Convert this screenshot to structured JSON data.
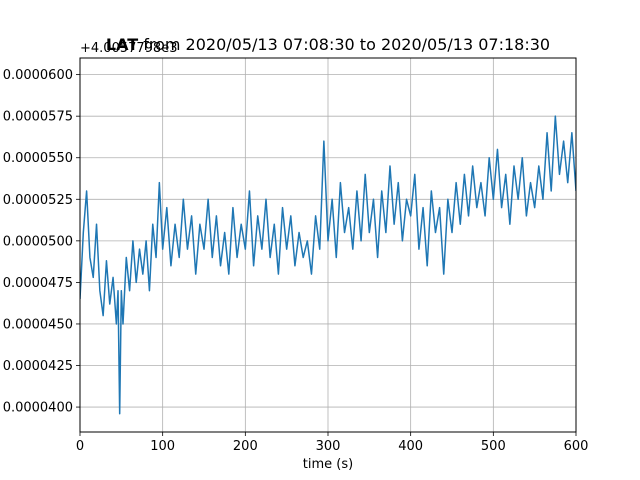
{
  "chart_data": {
    "type": "line",
    "title_bold": "LAT",
    "title_rest": " from 2020/05/13 07:08:30 to 2020/05/13 07:18:30",
    "xlabel": "time (s)",
    "ylabel": "",
    "offset_text": "+4.0057798e3",
    "xlim": [
      0,
      600
    ],
    "ylim": [
      3.85e-05,
      6.1e-05
    ],
    "x_ticks": [
      0,
      100,
      200,
      300,
      400,
      500,
      600
    ],
    "x_tick_labels": [
      "0",
      "100",
      "200",
      "300",
      "400",
      "500",
      "600"
    ],
    "y_ticks": [
      4e-05,
      4.25e-05,
      4.5e-05,
      4.75e-05,
      5e-05,
      5.25e-05,
      5.5e-05,
      5.75e-05,
      6e-05
    ],
    "y_tick_labels": [
      "0.0000400",
      "0.0000425",
      "0.0000450",
      "0.0000475",
      "0.0000500",
      "0.0000525",
      "0.0000550",
      "0.0000575",
      "0.0000600"
    ],
    "grid": true,
    "series": [
      {
        "color": "#1f77b4",
        "x": [
          0,
          4,
          8,
          12,
          16,
          20,
          24,
          28,
          32,
          36,
          40,
          44,
          46,
          48,
          50,
          52,
          56,
          60,
          64,
          68,
          72,
          76,
          80,
          84,
          88,
          92,
          96,
          100,
          105,
          110,
          115,
          120,
          125,
          130,
          135,
          140,
          145,
          150,
          155,
          160,
          165,
          170,
          175,
          180,
          185,
          190,
          195,
          200,
          205,
          210,
          215,
          220,
          225,
          230,
          235,
          240,
          245,
          250,
          255,
          260,
          265,
          270,
          275,
          280,
          285,
          290,
          295,
          300,
          305,
          310,
          315,
          320,
          325,
          330,
          335,
          340,
          345,
          350,
          355,
          360,
          365,
          370,
          375,
          380,
          385,
          390,
          395,
          400,
          405,
          410,
          415,
          420,
          425,
          430,
          435,
          440,
          445,
          450,
          455,
          460,
          465,
          470,
          475,
          480,
          485,
          490,
          495,
          500,
          505,
          510,
          515,
          520,
          525,
          530,
          535,
          540,
          545,
          550,
          555,
          560,
          565,
          570,
          575,
          580,
          585,
          590,
          595,
          600
        ],
        "y": [
          4.65e-05,
          5.05e-05,
          5.3e-05,
          4.9e-05,
          4.78e-05,
          5.1e-05,
          4.7e-05,
          4.55e-05,
          4.88e-05,
          4.62e-05,
          4.78e-05,
          4.5e-05,
          4.7e-05,
          3.96e-05,
          4.7e-05,
          4.5e-05,
          4.9e-05,
          4.7e-05,
          5e-05,
          4.75e-05,
          4.95e-05,
          4.8e-05,
          5e-05,
          4.7e-05,
          5.1e-05,
          4.9e-05,
          5.35e-05,
          4.95e-05,
          5.2e-05,
          4.85e-05,
          5.1e-05,
          4.9e-05,
          5.25e-05,
          4.95e-05,
          5.15e-05,
          4.8e-05,
          5.1e-05,
          4.95e-05,
          5.25e-05,
          4.9e-05,
          5.15e-05,
          4.85e-05,
          5.05e-05,
          4.8e-05,
          5.2e-05,
          4.9e-05,
          5.1e-05,
          4.95e-05,
          5.3e-05,
          4.85e-05,
          5.15e-05,
          4.95e-05,
          5.25e-05,
          4.9e-05,
          5.1e-05,
          4.8e-05,
          5.2e-05,
          4.95e-05,
          5.15e-05,
          4.85e-05,
          5.05e-05,
          4.9e-05,
          5e-05,
          4.8e-05,
          5.15e-05,
          4.95e-05,
          5.6e-05,
          5e-05,
          5.25e-05,
          4.9e-05,
          5.35e-05,
          5.05e-05,
          5.2e-05,
          4.95e-05,
          5.3e-05,
          5e-05,
          5.4e-05,
          5.05e-05,
          5.25e-05,
          4.9e-05,
          5.3e-05,
          5.05e-05,
          5.45e-05,
          5.1e-05,
          5.35e-05,
          5e-05,
          5.25e-05,
          5.15e-05,
          5.4e-05,
          4.95e-05,
          5.2e-05,
          4.85e-05,
          5.3e-05,
          5.05e-05,
          5.2e-05,
          4.8e-05,
          5.25e-05,
          5.05e-05,
          5.35e-05,
          5.1e-05,
          5.4e-05,
          5.15e-05,
          5.45e-05,
          5.2e-05,
          5.35e-05,
          5.15e-05,
          5.5e-05,
          5.25e-05,
          5.55e-05,
          5.2e-05,
          5.4e-05,
          5.1e-05,
          5.45e-05,
          5.25e-05,
          5.5e-05,
          5.15e-05,
          5.35e-05,
          5.2e-05,
          5.45e-05,
          5.25e-05,
          5.65e-05,
          5.3e-05,
          5.75e-05,
          5.4e-05,
          5.6e-05,
          5.35e-05,
          5.65e-05,
          5.3e-05
        ]
      }
    ]
  }
}
